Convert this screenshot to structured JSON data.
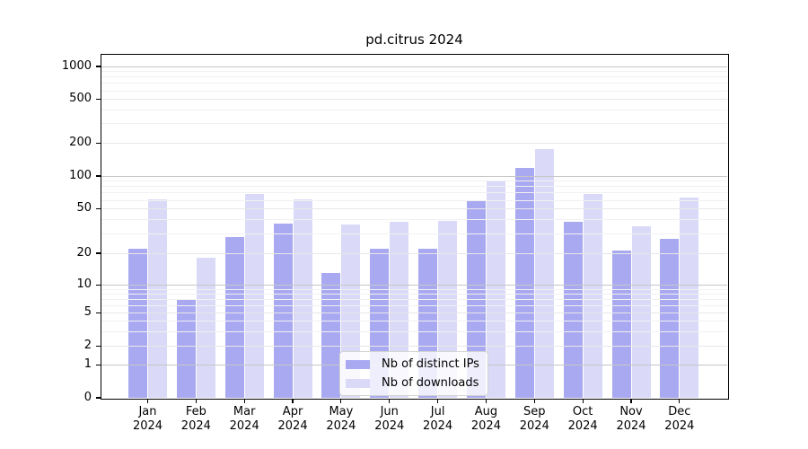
{
  "title": "pd.citrus 2024",
  "chart_data": {
    "type": "bar",
    "title": "pd.citrus 2024",
    "categories": [
      "Jan",
      "Feb",
      "Mar",
      "Apr",
      "May",
      "Jun",
      "Jul",
      "Aug",
      "Sep",
      "Oct",
      "Nov",
      "Dec"
    ],
    "year": "2024",
    "series": [
      {
        "name": "Nb of distinct IPs",
        "color": "#a9a9f2",
        "values": [
          22,
          7,
          28,
          37,
          13,
          22,
          22,
          60,
          119,
          38,
          21,
          27
        ]
      },
      {
        "name": "Nb of downloads",
        "color": "#dadaf8",
        "values": [
          61,
          18,
          69,
          61,
          36,
          38,
          39,
          90,
          177,
          68,
          35,
          64
        ]
      }
    ],
    "yscale": "symlog",
    "y_ticks": [
      0,
      1,
      2,
      5,
      10,
      20,
      50,
      100,
      200,
      500,
      1000
    ],
    "y_minor_ticks": [
      3,
      4,
      6,
      7,
      8,
      9,
      30,
      40,
      60,
      70,
      80,
      90,
      300,
      400,
      600,
      700,
      800,
      900
    ],
    "ylim": [
      0,
      1000
    ],
    "xlabel": "",
    "ylabel": "",
    "grid": true,
    "legend_position": "lower center"
  },
  "colors": {
    "grid_decade": "#c6c6c6",
    "grid_labeled": "#e7e7e7",
    "grid_minor": "#f1f1f1",
    "spine": "#000000",
    "background": "#ffffff"
  }
}
